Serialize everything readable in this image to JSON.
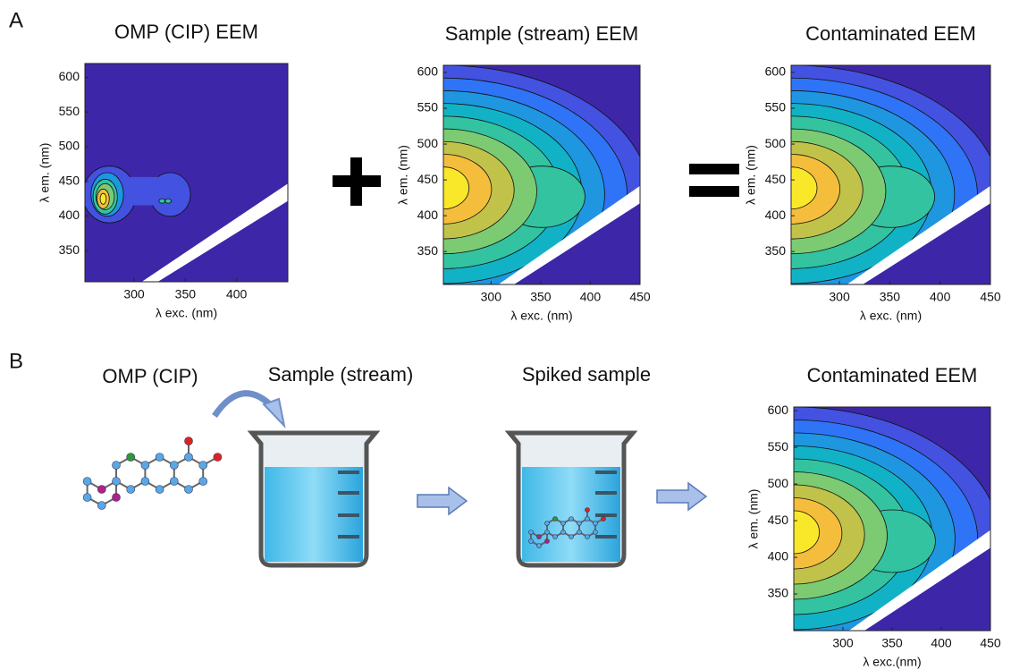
{
  "panel_labels": [
    "A",
    "B"
  ],
  "step_labels": [
    "OMP (CIP)",
    "Sample (stream)",
    "Spiked sample"
  ],
  "chart_data": [
    {
      "type": "contour",
      "title": "OMP (CIP) EEM",
      "x_label": "λ exc. (nm)",
      "y_label": "λ em. (nm)",
      "xlim": [
        252,
        450
      ],
      "ylim": [
        305,
        620
      ],
      "xticks": [
        300,
        350,
        400
      ],
      "yticks": [
        350,
        400,
        450,
        500,
        550,
        600
      ]
    },
    {
      "type": "contour",
      "title": "Sample (stream) EEM",
      "x_label": "λ exc. (nm)",
      "y_label": "λ em. (nm)",
      "xlim": [
        252,
        450
      ],
      "ylim": [
        304,
        610
      ],
      "xticks": [
        300,
        350,
        400,
        450
      ],
      "yticks": [
        350,
        400,
        450,
        500,
        550,
        600
      ]
    },
    {
      "type": "contour",
      "title": "Contaminated EEM",
      "x_label": "λ exc. (nm)",
      "y_label": "λ em. (nm)",
      "xlim": [
        252,
        450
      ],
      "ylim": [
        304,
        610
      ],
      "xticks": [
        300,
        350,
        400,
        450
      ],
      "yticks": [
        350,
        400,
        450,
        500,
        550,
        600
      ]
    },
    {
      "type": "contour",
      "title": "Contaminated EEM",
      "x_label": "λ exc.(nm)",
      "y_label": "λ em. (nm)",
      "xlim": [
        250,
        450
      ],
      "ylim": [
        300,
        605
      ],
      "xticks": [
        300,
        350,
        400,
        450
      ],
      "yticks": [
        350,
        400,
        450,
        500,
        550,
        600
      ]
    }
  ]
}
